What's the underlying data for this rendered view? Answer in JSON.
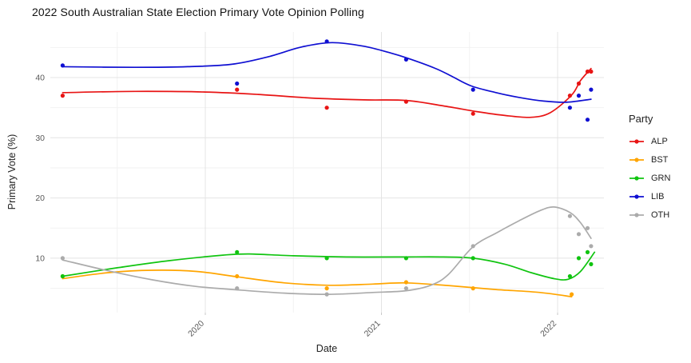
{
  "title": "2022 South Australian State Election Primary Vote Opinion Polling",
  "chart_data": {
    "type": "scatter+line",
    "title": "2022 South Australian State Election Primary Vote Opinion Polling",
    "xlabel": "Date",
    "ylabel": "Primary Vote (%)",
    "grid": true,
    "legend_title": "Party",
    "legend_position": "right",
    "x_range": [
      2019.12,
      2022.26
    ],
    "y_range": [
      1,
      47.5
    ],
    "x_ticks": [
      2020,
      2021,
      2022
    ],
    "x_tick_labels": [
      "2020",
      "2021",
      "2022"
    ],
    "x_minor_ticks": [
      2019.5,
      2020.5,
      2021.5
    ],
    "y_ticks": [
      10,
      20,
      30,
      40
    ],
    "y_minor_ticks": [
      5,
      15,
      25,
      35,
      45
    ],
    "series": [
      {
        "name": "ALP",
        "color": "#e81414",
        "points": [
          [
            2019.19,
            37
          ],
          [
            2020.18,
            38
          ],
          [
            2020.69,
            35
          ],
          [
            2021.14,
            36
          ],
          [
            2021.52,
            34
          ],
          [
            2022.07,
            37
          ],
          [
            2022.12,
            39
          ],
          [
            2022.17,
            41
          ],
          [
            2022.19,
            41
          ]
        ],
        "trend": [
          [
            2019.19,
            37.5
          ],
          [
            2019.6,
            37.7
          ],
          [
            2020.0,
            37.6
          ],
          [
            2020.3,
            37.2
          ],
          [
            2020.6,
            36.6
          ],
          [
            2020.9,
            36.3
          ],
          [
            2021.14,
            36.2
          ],
          [
            2021.35,
            35.3
          ],
          [
            2021.55,
            34.3
          ],
          [
            2021.7,
            33.7
          ],
          [
            2021.85,
            33.4
          ],
          [
            2021.96,
            34.2
          ],
          [
            2022.08,
            37.1
          ],
          [
            2022.13,
            39.5
          ],
          [
            2022.19,
            41.5
          ]
        ]
      },
      {
        "name": "BST",
        "color": "#ffa500",
        "points": [
          [
            2019.19,
            7
          ],
          [
            2020.18,
            7
          ],
          [
            2020.69,
            5
          ],
          [
            2021.14,
            6
          ],
          [
            2021.52,
            5
          ],
          [
            2022.08,
            4
          ]
        ],
        "trend": [
          [
            2019.19,
            6.6
          ],
          [
            2019.45,
            7.6
          ],
          [
            2019.7,
            8.0
          ],
          [
            2019.95,
            7.8
          ],
          [
            2020.18,
            6.9
          ],
          [
            2020.45,
            5.9
          ],
          [
            2020.7,
            5.5
          ],
          [
            2020.95,
            5.7
          ],
          [
            2021.14,
            5.9
          ],
          [
            2021.4,
            5.4
          ],
          [
            2021.65,
            4.8
          ],
          [
            2021.9,
            4.3
          ],
          [
            2022.08,
            3.6
          ]
        ]
      },
      {
        "name": "GRN",
        "color": "#10c410",
        "points": [
          [
            2019.19,
            7
          ],
          [
            2020.18,
            11
          ],
          [
            2020.69,
            10
          ],
          [
            2021.14,
            10
          ],
          [
            2021.52,
            10
          ],
          [
            2022.07,
            7
          ],
          [
            2022.12,
            10
          ],
          [
            2022.17,
            11
          ],
          [
            2022.19,
            9
          ]
        ],
        "trend": [
          [
            2019.19,
            7.0
          ],
          [
            2019.5,
            8.4
          ],
          [
            2019.8,
            9.6
          ],
          [
            2020.1,
            10.5
          ],
          [
            2020.25,
            10.7
          ],
          [
            2020.5,
            10.4
          ],
          [
            2020.8,
            10.2
          ],
          [
            2021.1,
            10.2
          ],
          [
            2021.35,
            10.2
          ],
          [
            2021.52,
            10.0
          ],
          [
            2021.7,
            9.0
          ],
          [
            2021.85,
            7.6
          ],
          [
            2021.98,
            6.6
          ],
          [
            2022.06,
            6.5
          ],
          [
            2022.13,
            7.8
          ],
          [
            2022.21,
            11.0
          ]
        ]
      },
      {
        "name": "LIB",
        "color": "#0f0fd2",
        "points": [
          [
            2019.19,
            42
          ],
          [
            2020.18,
            39
          ],
          [
            2020.69,
            46
          ],
          [
            2021.14,
            43
          ],
          [
            2021.52,
            38
          ],
          [
            2022.07,
            35
          ],
          [
            2022.12,
            37
          ],
          [
            2022.17,
            33
          ],
          [
            2022.19,
            38
          ]
        ],
        "trend": [
          [
            2019.19,
            41.8
          ],
          [
            2019.6,
            41.7
          ],
          [
            2019.9,
            41.8
          ],
          [
            2020.15,
            42.2
          ],
          [
            2020.35,
            43.4
          ],
          [
            2020.55,
            45.1
          ],
          [
            2020.72,
            45.8
          ],
          [
            2020.9,
            45.2
          ],
          [
            2021.05,
            44.1
          ],
          [
            2021.14,
            43.3
          ],
          [
            2021.3,
            41.6
          ],
          [
            2021.4,
            40.2
          ],
          [
            2021.51,
            38.6
          ],
          [
            2021.65,
            37.5
          ],
          [
            2021.78,
            36.7
          ],
          [
            2021.92,
            36.1
          ],
          [
            2022.05,
            35.9
          ],
          [
            2022.19,
            36.4
          ]
        ]
      },
      {
        "name": "OTH",
        "color": "#ababab",
        "points": [
          [
            2019.19,
            10
          ],
          [
            2020.18,
            5
          ],
          [
            2020.69,
            4
          ],
          [
            2021.14,
            5
          ],
          [
            2021.52,
            12
          ],
          [
            2022.07,
            17
          ],
          [
            2022.12,
            14
          ],
          [
            2022.17,
            15
          ],
          [
            2022.19,
            12
          ]
        ],
        "trend": [
          [
            2019.19,
            9.7
          ],
          [
            2019.45,
            7.9
          ],
          [
            2019.7,
            6.4
          ],
          [
            2019.95,
            5.3
          ],
          [
            2020.2,
            4.7
          ],
          [
            2020.45,
            4.2
          ],
          [
            2020.7,
            4.0
          ],
          [
            2020.95,
            4.3
          ],
          [
            2021.14,
            4.6
          ],
          [
            2021.28,
            5.5
          ],
          [
            2021.38,
            7.3
          ],
          [
            2021.52,
            11.9
          ],
          [
            2021.66,
            14.3
          ],
          [
            2021.78,
            16.2
          ],
          [
            2021.9,
            17.9
          ],
          [
            2021.98,
            18.5
          ],
          [
            2022.07,
            17.6
          ],
          [
            2022.13,
            15.9
          ],
          [
            2022.19,
            13.3
          ]
        ]
      }
    ],
    "colors": {
      "major_grid": "#e4e4e4",
      "minor_grid": "#f2f2f2",
      "tick_label": "#595959"
    }
  }
}
